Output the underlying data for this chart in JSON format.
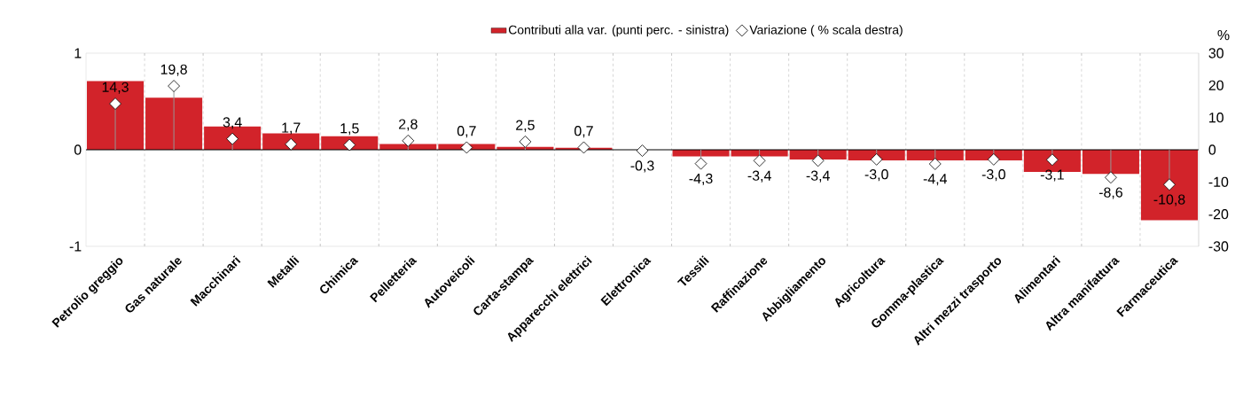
{
  "chart_data": {
    "type": "bar",
    "legend": "top",
    "grid": "x",
    "categories": [
      "Petrolio greggio",
      "Gas naturale",
      "Macchinari",
      "Metalli",
      "Chimica",
      "Pelletteria",
      "Autoveicoli",
      "Carta-stampa",
      "Apparecchi elettrici",
      "Elettronica",
      "Tessili",
      "Raffinazione",
      "Abbigliamento",
      "Agricoltura",
      "Gomma-plastica",
      "Altri mezzi trasporto",
      "Alimentari",
      "Altra manifattura",
      "Farmaceutica"
    ],
    "y2label": "%",
    "ylim": [
      -1,
      1
    ],
    "yticks": [
      -1,
      0,
      1
    ],
    "y2lim": [
      -30,
      30
    ],
    "y2ticks": [
      -30,
      -20,
      -10,
      0,
      10,
      20,
      30
    ],
    "series": [
      {
        "name": "Contributi alla var. (punti perc. - sinistra)",
        "color": "#d2232a",
        "values": [
          0.71,
          0.54,
          0.24,
          0.17,
          0.14,
          0.06,
          0.06,
          0.03,
          0.02,
          0.0,
          -0.07,
          -0.07,
          -0.1,
          -0.11,
          -0.11,
          -0.11,
          -0.23,
          -0.25,
          -0.73
        ]
      },
      {
        "name": "Variazione ( % scala destra)",
        "type": "lollipop",
        "axis": "y2",
        "marker": "diamond",
        "color": "#ffffff",
        "values": [
          14.3,
          19.8,
          3.4,
          1.7,
          1.5,
          2.8,
          0.7,
          2.5,
          0.7,
          -0.3,
          -4.3,
          -3.4,
          -3.4,
          -3.0,
          -4.4,
          -3.0,
          -3.1,
          -8.6,
          -10.8
        ],
        "value_labels": [
          "14,3",
          "19,8",
          "3,4",
          "1,7",
          "1,5",
          "2,8",
          "0,7",
          "2,5",
          "0,7",
          "-0,3",
          "-4,3",
          "-3,4",
          "-3,4",
          "-3,0",
          "-4,4",
          "-3,0",
          "-3,1",
          "-8,6",
          "-10,8"
        ]
      }
    ]
  }
}
